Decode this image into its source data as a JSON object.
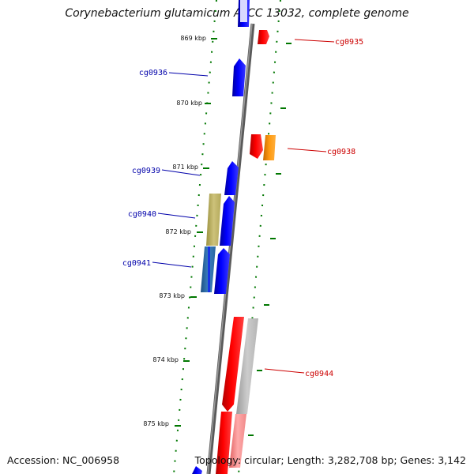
{
  "title": "Corynebacterium glutamicum ATCC 13032, complete genome",
  "footer": {
    "accession": "Accession: NC_006958",
    "stats": "Topology: circular; Length: 3,282,708 bp; Genes: 3,142"
  },
  "ticks": [
    "869 kbp",
    "870 kbp",
    "871 kbp",
    "872 kbp",
    "873 kbp",
    "874 kbp",
    "875 kbp"
  ],
  "gene_labels": {
    "left": [
      "cg0936",
      "cg0939",
      "cg0940",
      "cg0941"
    ],
    "right": [
      "cg0935",
      "cg0938",
      "cg0944"
    ]
  },
  "colors": {
    "forward_strand": "#ff0000",
    "reverse_strand": "#0000ff",
    "label_forward": "#cc0000",
    "label_reverse": "#0000aa",
    "tick": "#007700"
  }
}
